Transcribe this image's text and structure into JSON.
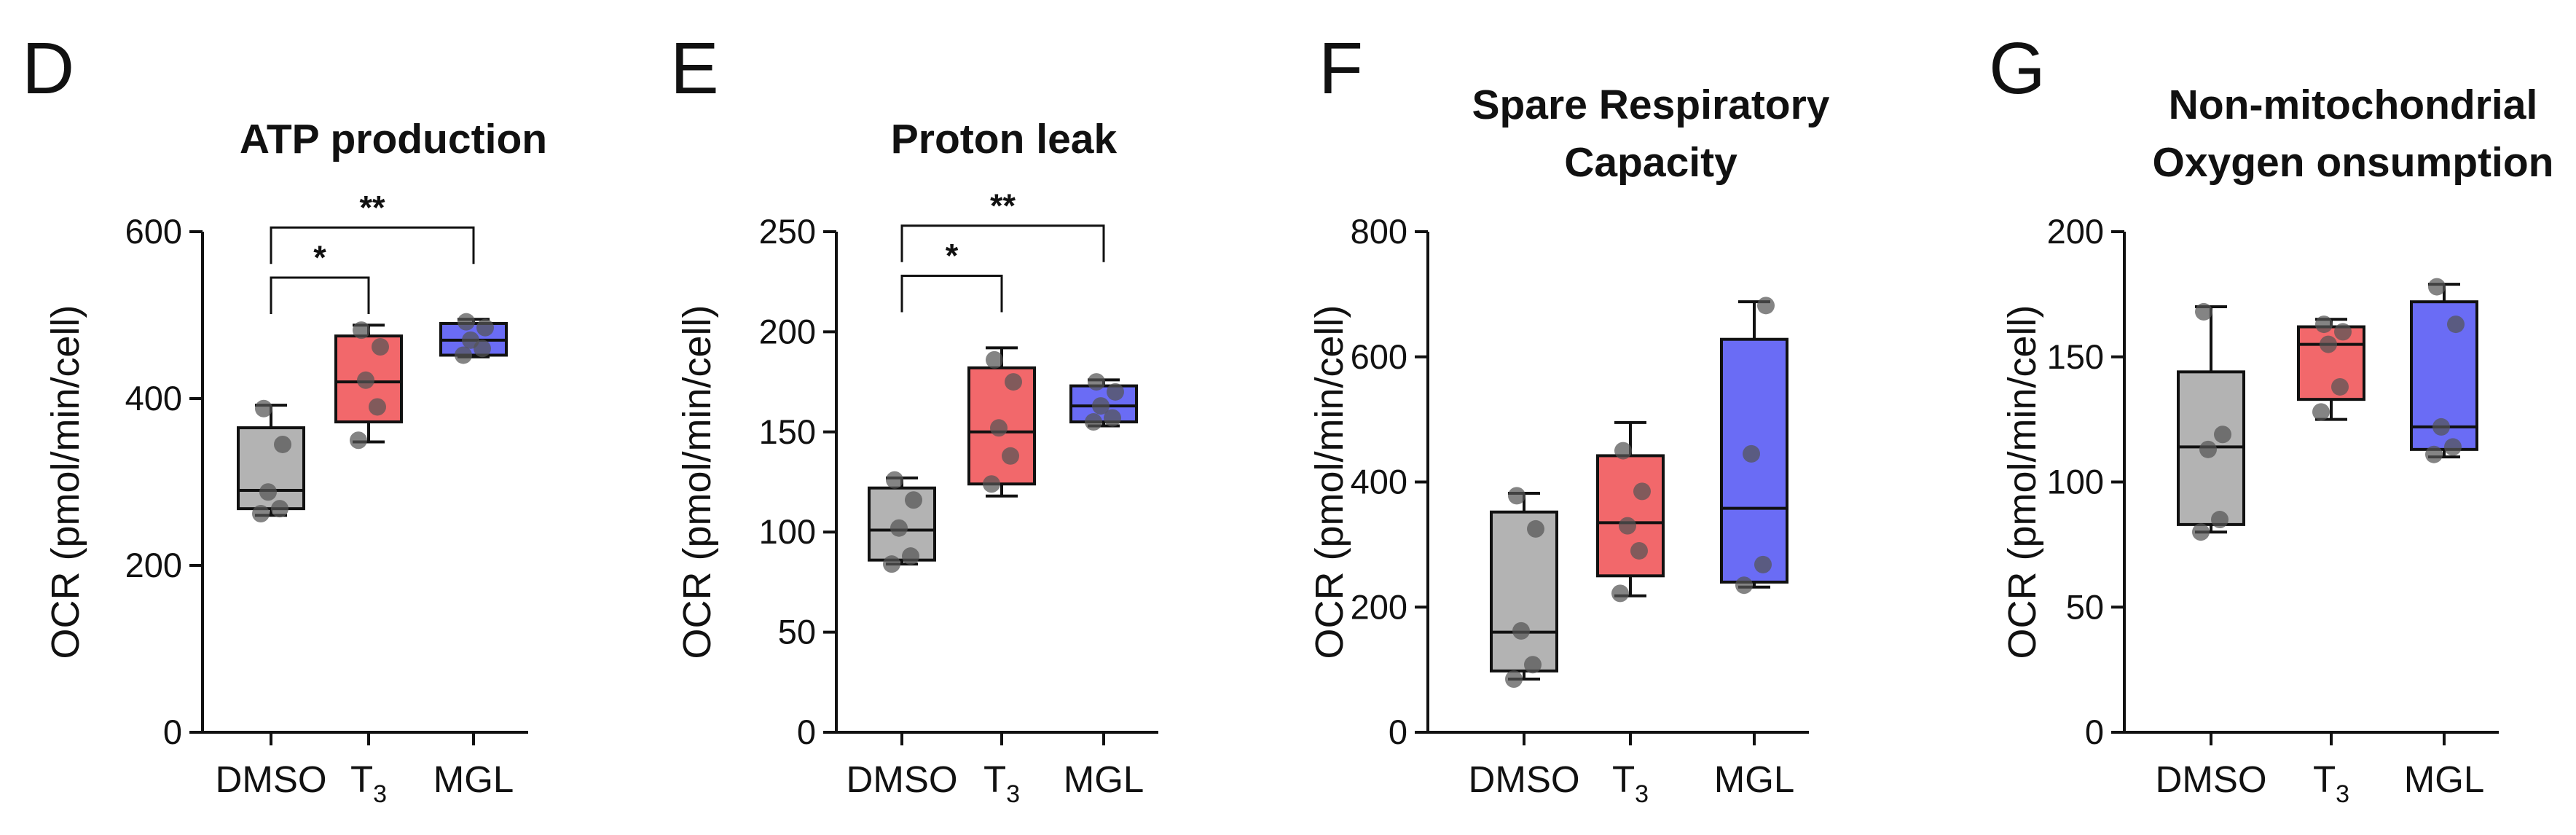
{
  "chart_data": [
    {
      "type": "box",
      "panel": "D",
      "title": [
        "ATP production"
      ],
      "ylabel": "OCR (pmol/min/cell)",
      "ylim": [
        0,
        600
      ],
      "yticks": [
        0,
        200,
        400,
        600
      ],
      "groups": [
        {
          "label": "DMSO",
          "sub": "",
          "color": "#b3b3b3",
          "box": {
            "min": 260,
            "q1": 268,
            "median": 290,
            "q3": 365,
            "max": 392
          },
          "points": [
            262,
            268,
            288,
            345,
            388
          ]
        },
        {
          "label": "T",
          "sub": "3",
          "color": "#f2686b",
          "box": {
            "min": 348,
            "q1": 372,
            "median": 420,
            "q3": 475,
            "max": 488
          },
          "points": [
            350,
            390,
            422,
            462,
            482
          ]
        },
        {
          "label": "MGL",
          "sub": "",
          "color": "#6a6cf5",
          "box": {
            "min": 450,
            "q1": 452,
            "median": 470,
            "q3": 490,
            "max": 495
          },
          "points": [
            452,
            460,
            470,
            485,
            492
          ]
        }
      ],
      "significance": [
        {
          "from": 0,
          "to": 1,
          "label": "*",
          "y": 545
        },
        {
          "from": 0,
          "to": 2,
          "label": "**",
          "y": 605
        }
      ]
    },
    {
      "type": "box",
      "panel": "E",
      "title": [
        "Proton leak"
      ],
      "ylabel": "OCR (pmol/min/cell)",
      "ylim": [
        0,
        250
      ],
      "yticks": [
        0,
        50,
        100,
        150,
        200,
        250
      ],
      "groups": [
        {
          "label": "DMSO",
          "sub": "",
          "color": "#b3b3b3",
          "box": {
            "min": 84,
            "q1": 86,
            "median": 101,
            "q3": 122,
            "max": 127
          },
          "points": [
            84,
            88,
            102,
            116,
            126
          ]
        },
        {
          "label": "T",
          "sub": "3",
          "color": "#f2686b",
          "box": {
            "min": 118,
            "q1": 124,
            "median": 150,
            "q3": 182,
            "max": 192
          },
          "points": [
            124,
            138,
            152,
            175,
            186
          ]
        },
        {
          "label": "MGL",
          "sub": "",
          "color": "#6a6cf5",
          "box": {
            "min": 153,
            "q1": 155,
            "median": 163,
            "q3": 173,
            "max": 176
          },
          "points": [
            155,
            157,
            163,
            170,
            175
          ]
        }
      ],
      "significance": [
        {
          "from": 0,
          "to": 1,
          "label": "*",
          "y": 228
        },
        {
          "from": 0,
          "to": 2,
          "label": "**",
          "y": 253
        }
      ]
    },
    {
      "type": "box",
      "panel": "F",
      "title": [
        "Spare Respiratory",
        "Capacity"
      ],
      "ylabel": "OCR (pmol/min/cell)",
      "ylim": [
        0,
        800
      ],
      "yticks": [
        0,
        200,
        400,
        600,
        800
      ],
      "groups": [
        {
          "label": "DMSO",
          "sub": "",
          "color": "#b3b3b3",
          "box": {
            "min": 85,
            "q1": 98,
            "median": 160,
            "q3": 352,
            "max": 382
          },
          "points": [
            85,
            108,
            162,
            325,
            378
          ]
        },
        {
          "label": "T",
          "sub": "3",
          "color": "#f2686b",
          "box": {
            "min": 218,
            "q1": 250,
            "median": 335,
            "q3": 442,
            "max": 495
          },
          "points": [
            222,
            290,
            330,
            385,
            450
          ]
        },
        {
          "label": "MGL",
          "sub": "",
          "color": "#6a6cf5",
          "box": {
            "min": 232,
            "q1": 240,
            "median": 358,
            "q3": 628,
            "max": 688
          },
          "points": [
            235,
            268,
            445,
            682
          ]
        }
      ],
      "significance": []
    },
    {
      "type": "box",
      "panel": "G",
      "title": [
        "Non-mitochondrial",
        "Oxygen onsumption"
      ],
      "ylabel": "OCR (pmol/min/cell)",
      "ylim": [
        0,
        200
      ],
      "yticks": [
        0,
        50,
        100,
        150,
        200
      ],
      "groups": [
        {
          "label": "DMSO",
          "sub": "",
          "color": "#b3b3b3",
          "box": {
            "min": 80,
            "q1": 83,
            "median": 114,
            "q3": 144,
            "max": 170
          },
          "points": [
            80,
            85,
            113,
            119,
            168
          ]
        },
        {
          "label": "T",
          "sub": "3",
          "color": "#f2686b",
          "box": {
            "min": 125,
            "q1": 133,
            "median": 155,
            "q3": 162,
            "max": 165
          },
          "points": [
            128,
            138,
            155,
            160,
            163
          ]
        },
        {
          "label": "MGL",
          "sub": "",
          "color": "#6a6cf5",
          "box": {
            "min": 110,
            "q1": 113,
            "median": 122,
            "q3": 172,
            "max": 179
          },
          "points": [
            111,
            114,
            122,
            163,
            178
          ]
        }
      ],
      "significance": []
    }
  ]
}
